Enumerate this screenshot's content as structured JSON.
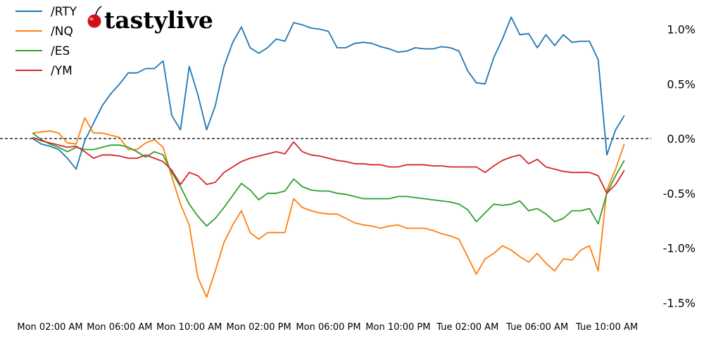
{
  "logo": {
    "text": "tastylive",
    "cherry_color": "#d0101a"
  },
  "chart_data": {
    "type": "line",
    "title": "",
    "xlabel": "",
    "ylabel": "",
    "ylim": [
      -1.6,
      1.2
    ],
    "y_axis_side": "right",
    "grid": false,
    "legend": "top-left",
    "reference_line": {
      "y": 0.0,
      "style": "dashed",
      "color": "#000000"
    },
    "x_ticks": [
      "Mon 02:00 AM",
      "Mon 06:00 AM",
      "Mon 10:00 AM",
      "Mon 02:00 PM",
      "Mon 06:00 PM",
      "Mon 10:00 PM",
      "Tue 02:00 AM",
      "Tue 06:00 AM",
      "Tue 10:00 AM"
    ],
    "y_ticks": [
      {
        "value": 1.0,
        "label": "1.0%"
      },
      {
        "value": 0.5,
        "label": "0.5%"
      },
      {
        "value": 0.0,
        "label": "0.0%"
      },
      {
        "value": -0.5,
        "label": "-0.5%"
      },
      {
        "value": -1.0,
        "label": "-1.0%"
      },
      {
        "value": -1.5,
        "label": "-1.5%"
      }
    ],
    "x": [
      "Mon 01:00",
      "Mon 01:30",
      "Mon 02:00",
      "Mon 02:30",
      "Mon 03:00",
      "Mon 03:30",
      "Mon 04:00",
      "Mon 04:30",
      "Mon 05:00",
      "Mon 05:30",
      "Mon 06:00",
      "Mon 06:30",
      "Mon 07:00",
      "Mon 07:30",
      "Mon 08:00",
      "Mon 08:30",
      "Mon 09:00",
      "Mon 09:30",
      "Mon 10:00",
      "Mon 10:30",
      "Mon 11:00",
      "Mon 11:30",
      "Mon 12:00",
      "Mon 12:30",
      "Mon 13:00",
      "Mon 13:30",
      "Mon 14:00",
      "Mon 14:30",
      "Mon 15:00",
      "Mon 15:30",
      "Mon 16:00",
      "Mon 16:30",
      "Mon 17:00",
      "Mon 17:30",
      "Mon 18:00",
      "Mon 18:30",
      "Mon 19:00",
      "Mon 19:30",
      "Mon 20:00",
      "Mon 20:30",
      "Mon 21:00",
      "Mon 21:30",
      "Mon 22:00",
      "Mon 22:30",
      "Mon 23:00",
      "Mon 23:30",
      "Tue 00:00",
      "Tue 00:30",
      "Tue 01:00",
      "Tue 01:30",
      "Tue 02:00",
      "Tue 02:30",
      "Tue 03:00",
      "Tue 03:30",
      "Tue 04:00",
      "Tue 04:30",
      "Tue 05:00",
      "Tue 05:30",
      "Tue 06:00",
      "Tue 06:30",
      "Tue 07:00",
      "Tue 07:30",
      "Tue 08:00",
      "Tue 08:30",
      "Tue 09:00",
      "Tue 09:30",
      "Tue 10:00",
      "Tue 10:30",
      "Tue 11:00"
    ],
    "series": [
      {
        "name": "/RTY",
        "color": "#1f77b4",
        "values": [
          0,
          -0.05,
          -0.07,
          -0.1,
          -0.18,
          -0.28,
          -0.02,
          0.14,
          0.3,
          0.41,
          0.5,
          0.6,
          0.6,
          0.64,
          0.64,
          0.71,
          0.21,
          0.08,
          0.66,
          0.4,
          0.08,
          0.3,
          0.66,
          0.88,
          1.02,
          0.83,
          0.78,
          0.83,
          0.91,
          0.89,
          1.06,
          1.04,
          1.01,
          1.0,
          0.98,
          0.83,
          0.83,
          0.87,
          0.88,
          0.87,
          0.84,
          0.82,
          0.79,
          0.8,
          0.83,
          0.82,
          0.82,
          0.84,
          0.83,
          0.8,
          0.62,
          0.51,
          0.5,
          0.74,
          0.91,
          1.11,
          0.95,
          0.96,
          0.83,
          0.95,
          0.85,
          0.95,
          0.88,
          0.89,
          0.89,
          0.72,
          -0.15,
          0.08,
          0.21
        ]
      },
      {
        "name": "/NQ",
        "color": "#ff7f0e",
        "values": [
          0.05,
          0.06,
          0.07,
          0.05,
          -0.04,
          -0.05,
          0.19,
          0.05,
          0.05,
          0.03,
          0.01,
          -0.1,
          -0.1,
          -0.04,
          -0.01,
          -0.08,
          -0.35,
          -0.6,
          -0.79,
          -1.27,
          -1.45,
          -1.21,
          -0.95,
          -0.79,
          -0.66,
          -0.86,
          -0.92,
          -0.86,
          -0.86,
          -0.86,
          -0.55,
          -0.63,
          -0.66,
          -0.68,
          -0.69,
          -0.69,
          -0.73,
          -0.77,
          -0.79,
          -0.8,
          -0.82,
          -0.8,
          -0.79,
          -0.82,
          -0.82,
          -0.82,
          -0.84,
          -0.87,
          -0.89,
          -0.92,
          -1.08,
          -1.24,
          -1.1,
          -1.05,
          -0.98,
          -1.02,
          -1.08,
          -1.13,
          -1.05,
          -1.14,
          -1.21,
          -1.1,
          -1.11,
          -1.02,
          -0.98,
          -1.21,
          -0.47,
          -0.28,
          -0.05
        ]
      },
      {
        "name": "/ES",
        "color": "#2ca02c",
        "values": [
          0.05,
          -0.01,
          -0.05,
          -0.08,
          -0.12,
          -0.08,
          -0.1,
          -0.1,
          -0.08,
          -0.06,
          -0.06,
          -0.08,
          -0.12,
          -0.17,
          -0.12,
          -0.15,
          -0.31,
          -0.44,
          -0.6,
          -0.71,
          -0.8,
          -0.73,
          -0.63,
          -0.52,
          -0.41,
          -0.47,
          -0.56,
          -0.5,
          -0.5,
          -0.48,
          -0.37,
          -0.44,
          -0.47,
          -0.48,
          -0.48,
          -0.5,
          -0.51,
          -0.53,
          -0.55,
          -0.55,
          -0.55,
          -0.55,
          -0.53,
          -0.53,
          -0.54,
          -0.55,
          -0.56,
          -0.57,
          -0.58,
          -0.6,
          -0.65,
          -0.76,
          -0.68,
          -0.6,
          -0.61,
          -0.6,
          -0.57,
          -0.66,
          -0.64,
          -0.69,
          -0.76,
          -0.73,
          -0.66,
          -0.66,
          -0.64,
          -0.78,
          -0.5,
          -0.34,
          -0.2
        ]
      },
      {
        "name": "/YM",
        "color": "#d62728",
        "values": [
          0.01,
          -0.02,
          -0.04,
          -0.06,
          -0.08,
          -0.07,
          -0.12,
          -0.18,
          -0.15,
          -0.15,
          -0.16,
          -0.18,
          -0.18,
          -0.15,
          -0.18,
          -0.21,
          -0.29,
          -0.42,
          -0.31,
          -0.34,
          -0.42,
          -0.4,
          -0.31,
          -0.26,
          -0.21,
          -0.18,
          -0.16,
          -0.14,
          -0.12,
          -0.14,
          -0.03,
          -0.12,
          -0.15,
          -0.16,
          -0.18,
          -0.2,
          -0.21,
          -0.23,
          -0.23,
          -0.24,
          -0.24,
          -0.26,
          -0.26,
          -0.24,
          -0.24,
          -0.24,
          -0.25,
          -0.25,
          -0.26,
          -0.26,
          -0.26,
          -0.26,
          -0.31,
          -0.25,
          -0.2,
          -0.17,
          -0.15,
          -0.23,
          -0.19,
          -0.26,
          -0.28,
          -0.3,
          -0.31,
          -0.31,
          -0.31,
          -0.34,
          -0.5,
          -0.42,
          -0.29
        ]
      }
    ]
  }
}
